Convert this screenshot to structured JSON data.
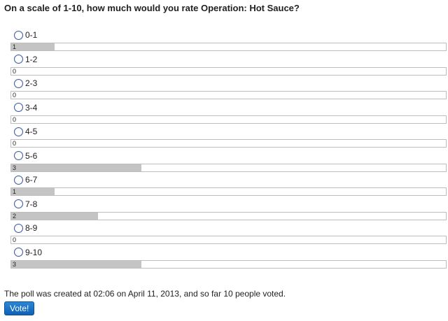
{
  "poll": {
    "question": "On a scale of 1-10, how much would you rate Operation: Hot Sauce?",
    "max_votes": 10,
    "options": [
      {
        "label": "0-1",
        "votes": 1
      },
      {
        "label": "1-2",
        "votes": 0
      },
      {
        "label": "2-3",
        "votes": 0
      },
      {
        "label": "3-4",
        "votes": 0
      },
      {
        "label": "4-5",
        "votes": 0
      },
      {
        "label": "5-6",
        "votes": 3
      },
      {
        "label": "6-7",
        "votes": 1
      },
      {
        "label": "7-8",
        "votes": 2
      },
      {
        "label": "8-9",
        "votes": 0
      },
      {
        "label": "9-10",
        "votes": 3
      }
    ],
    "footer": "The poll was created at 02:06 on April 11, 2013, and so far 10 people voted.",
    "vote_button_label": "Vote!"
  },
  "colors": {
    "bar_fill": "#c4c4c4",
    "bar_border": "#bdbdbd",
    "button_background": "#1a72c4",
    "button_text": "#ffffff"
  }
}
